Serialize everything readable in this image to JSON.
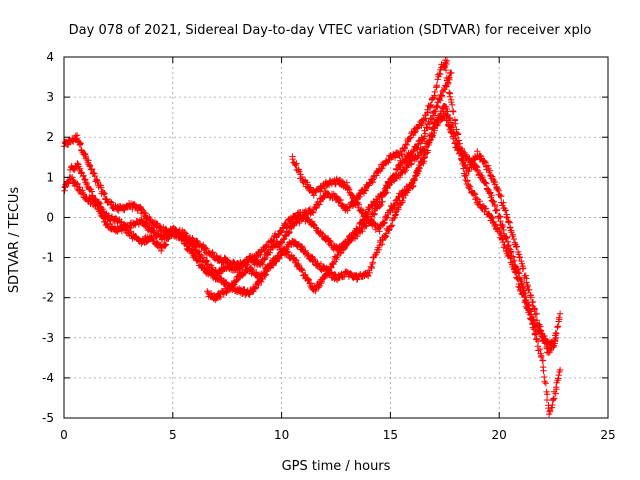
{
  "chart_data": {
    "type": "scatter",
    "title": "Day 078 of 2021, Sidereal Day-to-day VTEC variation (SDTVAR) for receiver xplo",
    "xlabel": "GPS time / hours",
    "ylabel": "SDTVAR / TECUs",
    "xlim": [
      0,
      25
    ],
    "ylim": [
      -5,
      4
    ],
    "xticks": [
      "0",
      "5",
      "10",
      "15",
      "20",
      "25"
    ],
    "yticks": [
      "-5",
      "-4",
      "-3",
      "-2",
      "-1",
      "0",
      "1",
      "2",
      "3",
      "4"
    ],
    "grid": true,
    "marker": "+",
    "color": "#ff0000",
    "series": [
      {
        "name": "trace-1",
        "x": [
          0.0,
          0.3,
          0.6,
          1.0,
          1.5,
          2.0,
          2.5,
          3.0,
          3.5,
          4.0,
          4.5,
          5.0,
          5.5,
          6.0,
          6.5,
          7.0,
          7.5,
          8.0,
          8.5,
          9.0,
          9.5,
          10.0,
          10.5,
          11.0,
          11.5,
          12.0,
          12.5,
          13.0,
          13.5,
          14.0,
          14.5,
          15.0,
          15.5,
          16.0,
          16.5,
          17.0,
          17.2,
          17.4,
          17.6
        ],
        "y": [
          1.8,
          1.9,
          2.0,
          1.5,
          0.9,
          0.4,
          0.2,
          0.3,
          0.2,
          -0.1,
          -0.3,
          -0.4,
          -0.5,
          -0.6,
          -0.8,
          -1.0,
          -1.1,
          -1.2,
          -1.1,
          -0.9,
          -0.6,
          -0.3,
          0.0,
          0.1,
          0.2,
          0.6,
          0.5,
          0.2,
          0.5,
          0.8,
          1.2,
          1.5,
          1.6,
          2.1,
          2.4,
          3.0,
          3.5,
          3.8,
          3.9
        ]
      },
      {
        "name": "trace-2",
        "x": [
          0.0,
          0.3,
          0.6,
          1.0,
          1.5,
          2.0,
          2.5,
          3.0,
          3.5,
          4.0,
          4.5,
          5.0,
          5.5,
          6.0,
          6.5,
          7.0,
          7.5,
          8.0,
          8.5,
          9.0,
          9.5,
          10.0,
          10.5,
          11.0,
          11.5,
          12.0,
          12.5,
          13.0,
          13.5,
          14.0,
          14.5,
          15.0,
          15.5,
          16.0,
          16.5,
          17.0,
          17.5,
          17.8
        ],
        "y": [
          0.7,
          1.0,
          0.8,
          0.5,
          0.3,
          -0.2,
          -0.3,
          -0.2,
          -0.1,
          -0.3,
          -0.5,
          -0.3,
          -0.4,
          -0.8,
          -1.1,
          -1.4,
          -1.2,
          -1.3,
          -1.0,
          -1.2,
          -0.8,
          -0.6,
          -0.2,
          0.0,
          -0.2,
          -0.5,
          -0.8,
          -0.7,
          -0.4,
          -0.1,
          0.3,
          0.9,
          1.4,
          1.6,
          2.0,
          2.6,
          3.2,
          3.6
        ]
      },
      {
        "name": "trace-3",
        "x": [
          0.3,
          0.6,
          1.0,
          1.5,
          2.0,
          2.5,
          3.0,
          3.5,
          4.0,
          4.5,
          5.0,
          5.5,
          6.0,
          6.5,
          7.0,
          7.5,
          8.0,
          8.5,
          9.0,
          9.5,
          10.0,
          10.5,
          11.0,
          11.5,
          12.0,
          12.5,
          13.0,
          13.5,
          14.0,
          14.5,
          15.0,
          15.5,
          16.0,
          16.5
        ],
        "y": [
          1.2,
          1.3,
          0.9,
          0.4,
          0.0,
          -0.1,
          -0.4,
          -0.6,
          -0.5,
          -0.8,
          -0.3,
          -0.6,
          -1.0,
          -1.3,
          -1.5,
          -1.7,
          -1.8,
          -1.9,
          -1.6,
          -1.2,
          -0.8,
          -1.0,
          -1.4,
          -1.8,
          -1.5,
          -1.0,
          -0.6,
          -0.3,
          0.2,
          0.5,
          0.9,
          1.1,
          1.4,
          1.7
        ]
      },
      {
        "name": "trace-4",
        "x": [
          6.6,
          7.0,
          7.5,
          8.0,
          8.5,
          9.0,
          9.5,
          10.0,
          10.5,
          11.0,
          11.5,
          12.0,
          12.5,
          13.0,
          13.5,
          14.0,
          14.5,
          15.0,
          15.5,
          16.0,
          16.5,
          17.0,
          17.5,
          18.0,
          18.5,
          19.0,
          19.5,
          20.0,
          20.5,
          21.0,
          21.5,
          22.0,
          22.5,
          22.8
        ],
        "y": [
          -1.9,
          -2.0,
          -1.8,
          -1.5,
          -1.3,
          -1.5,
          -1.2,
          -0.9,
          -0.6,
          -0.8,
          -1.1,
          -1.3,
          -1.5,
          -1.4,
          -1.5,
          -1.4,
          -0.7,
          -0.2,
          0.4,
          0.9,
          1.4,
          2.2,
          2.6,
          1.8,
          1.5,
          1.2,
          0.7,
          0.0,
          -0.8,
          -1.6,
          -2.5,
          -3.0,
          -3.2,
          -2.4
        ]
      },
      {
        "name": "trace-5",
        "x": [
          10.5,
          11.0,
          11.5,
          12.0,
          12.5,
          13.0,
          13.5,
          14.0,
          14.5,
          15.0,
          15.5,
          16.0,
          16.5,
          17.0,
          17.5,
          18.0,
          18.5,
          19.0,
          19.5,
          20.0,
          20.5,
          21.0,
          21.5,
          22.0,
          22.3,
          22.6,
          22.8
        ],
        "y": [
          1.5,
          0.9,
          0.6,
          0.8,
          0.9,
          0.8,
          0.3,
          -0.1,
          -0.3,
          0.2,
          0.6,
          0.8,
          1.5,
          2.3,
          2.8,
          2.0,
          0.9,
          0.4,
          0.1,
          -0.4,
          -1.0,
          -1.8,
          -2.6,
          -3.6,
          -4.9,
          -4.3,
          -3.8
        ]
      },
      {
        "name": "trace-6",
        "x": [
          17.5,
          18.0,
          18.5,
          19.0,
          19.5,
          20.0,
          20.5,
          21.0,
          21.5,
          22.0,
          22.3,
          22.6
        ],
        "y": [
          3.8,
          2.3,
          1.1,
          1.6,
          1.2,
          0.6,
          -0.2,
          -1.1,
          -2.1,
          -3.0,
          -3.4,
          -3.0
        ]
      }
    ]
  }
}
